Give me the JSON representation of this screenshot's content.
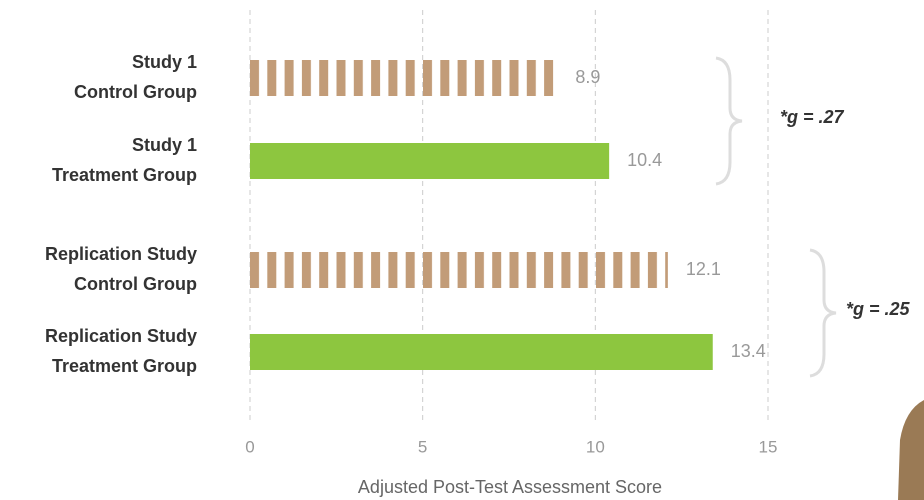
{
  "chart_data": {
    "type": "bar",
    "orientation": "horizontal",
    "categories": [
      [
        "Study 1",
        "Control Group"
      ],
      [
        "Study 1",
        "Treatment Group"
      ],
      [
        "Replication Study",
        "Control Group"
      ],
      [
        "Replication Study",
        "Treatment Group"
      ]
    ],
    "values": [
      8.9,
      10.4,
      12.1,
      13.4
    ],
    "colors": [
      "#c29c78",
      "#8dc63f",
      "#c29c78",
      "#8dc63f"
    ],
    "striped": [
      true,
      false,
      true,
      false
    ],
    "xlim": [
      0,
      15
    ],
    "xticks": [
      0,
      5,
      10,
      15
    ],
    "grid": true,
    "xlabel": "Adjusted Post-Test Assessment Score",
    "annotations": [
      "*g = .27",
      "*g = .25"
    ]
  }
}
